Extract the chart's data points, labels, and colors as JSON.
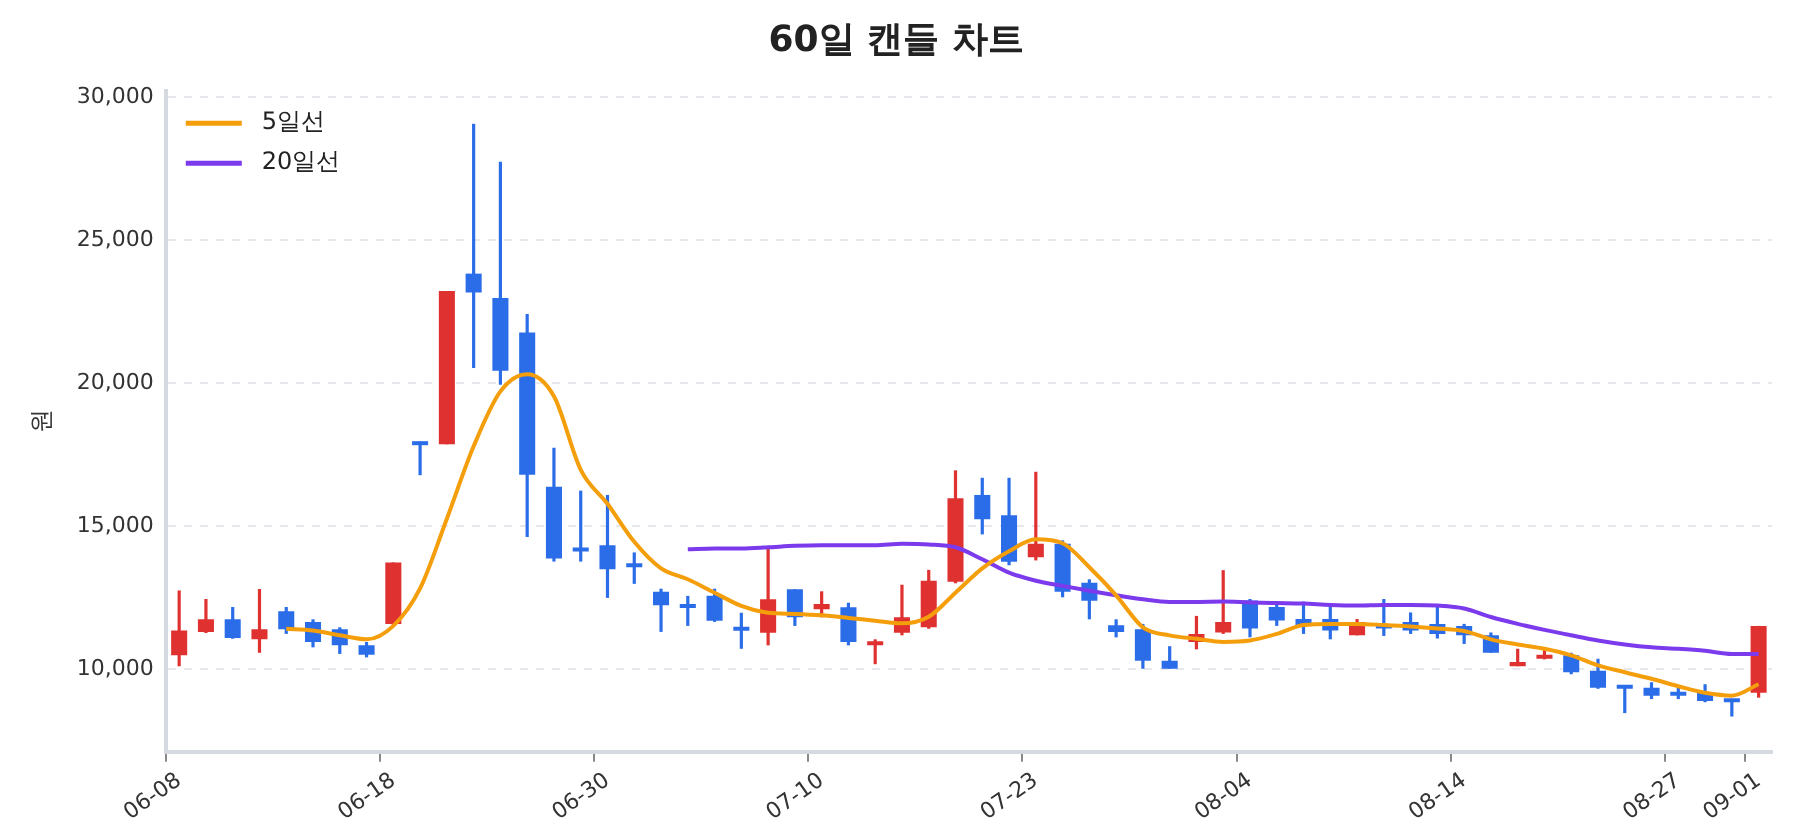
{
  "chart_data": {
    "type": "candlestick",
    "title": "60일 캔들 차트",
    "ylabel": "원",
    "categories": [
      "06-08",
      null,
      null,
      null,
      null,
      null,
      null,
      null,
      "06-18",
      null,
      null,
      null,
      null,
      null,
      null,
      null,
      "06-30",
      null,
      null,
      null,
      null,
      null,
      null,
      null,
      "07-10",
      null,
      null,
      null,
      null,
      null,
      null,
      null,
      "07-23",
      null,
      null,
      null,
      null,
      null,
      null,
      null,
      "08-04",
      null,
      null,
      null,
      null,
      null,
      null,
      null,
      "08-14",
      null,
      null,
      null,
      null,
      null,
      null,
      null,
      "08-27",
      null,
      null,
      "09-01"
    ],
    "ylim": [
      7100,
      30200
    ],
    "yticks": [
      {
        "value": 10000,
        "label": "10,000"
      },
      {
        "value": 15000,
        "label": "15,000"
      },
      {
        "value": 20000,
        "label": "20,000"
      },
      {
        "value": 25000,
        "label": "25,000"
      },
      {
        "value": 30000,
        "label": "30,000"
      }
    ],
    "grid": "y",
    "legend": "top left",
    "marker": "none",
    "series": [
      {
        "type": "candlestick",
        "ohlc": [
          [
            10470,
            12740,
            10090,
            11340
          ],
          [
            11290,
            12440,
            11250,
            11730
          ],
          [
            11730,
            12160,
            11050,
            11080
          ],
          [
            11030,
            12790,
            10560,
            11380
          ],
          [
            12010,
            12160,
            11220,
            11380
          ],
          [
            11640,
            11730,
            10750,
            10940
          ],
          [
            11380,
            11450,
            10520,
            10820
          ],
          [
            10820,
            10940,
            10400,
            10490
          ],
          [
            11570,
            13720,
            11500,
            13720
          ],
          [
            17940,
            17940,
            16770,
            17820
          ],
          [
            17850,
            23210,
            17850,
            23210
          ],
          [
            23820,
            29060,
            20520,
            23160
          ],
          [
            22970,
            27730,
            19930,
            20420
          ],
          [
            21760,
            22410,
            14610,
            16790
          ],
          [
            16370,
            17730,
            13750,
            13860
          ],
          [
            14220,
            16230,
            13750,
            14100
          ],
          [
            14320,
            16080,
            12480,
            13480
          ],
          [
            13670,
            14070,
            12970,
            13550
          ],
          [
            12690,
            12800,
            11290,
            12220
          ],
          [
            12240,
            12550,
            11500,
            12130
          ],
          [
            12550,
            12800,
            11640,
            11680
          ],
          [
            11450,
            11960,
            10700,
            11330
          ],
          [
            11260,
            14210,
            10820,
            12430
          ],
          [
            12780,
            12780,
            11500,
            11800
          ],
          [
            12080,
            12710,
            11800,
            12270
          ],
          [
            12150,
            12310,
            10820,
            10940
          ],
          [
            10820,
            11030,
            10160,
            10910
          ],
          [
            11260,
            12940,
            11170,
            11800
          ],
          [
            11450,
            13460,
            11400,
            13080
          ],
          [
            13040,
            16940,
            12990,
            15960
          ],
          [
            16080,
            16680,
            14700,
            15230
          ],
          [
            15370,
            16680,
            13620,
            13740
          ],
          [
            13900,
            16890,
            13790,
            14370
          ],
          [
            14370,
            14490,
            12500,
            12690
          ],
          [
            13010,
            13130,
            11730,
            12380
          ],
          [
            11520,
            11730,
            11100,
            11290
          ],
          [
            11380,
            11570,
            10000,
            10280
          ],
          [
            10280,
            10790,
            10000,
            10000
          ],
          [
            10940,
            11850,
            10680,
            11220
          ],
          [
            11270,
            13450,
            11220,
            11640
          ],
          [
            12390,
            12440,
            11100,
            11410
          ],
          [
            12160,
            12230,
            11500,
            11690
          ],
          [
            11740,
            12350,
            11220,
            11500
          ],
          [
            11740,
            12160,
            11030,
            11340
          ],
          [
            11170,
            11740,
            11170,
            11640
          ],
          [
            11500,
            12440,
            11150,
            11410
          ],
          [
            11640,
            11970,
            11220,
            11340
          ],
          [
            11570,
            12210,
            11060,
            11220
          ],
          [
            11500,
            11570,
            10870,
            11170
          ],
          [
            11170,
            11270,
            10560,
            10560
          ],
          [
            10090,
            10700,
            10090,
            10240
          ],
          [
            10350,
            10700,
            10330,
            10400
          ],
          [
            10470,
            10560,
            9810,
            9880
          ],
          [
            9930,
            10350,
            9300,
            9340
          ],
          [
            9390,
            9390,
            8450,
            9300
          ],
          [
            9340,
            9530,
            8940,
            9060
          ],
          [
            9200,
            9340,
            8940,
            9060
          ],
          [
            9160,
            9460,
            8830,
            8870
          ],
          [
            8920,
            8920,
            8330,
            8830
          ],
          [
            9160,
            11500,
            8990,
            11500
          ]
        ],
        "colors": [
          "#e03131",
          "#e03131",
          "#2b6de8",
          "#e03131",
          "#2b6de8",
          "#2b6de8",
          "#2b6de8",
          "#2b6de8",
          "#e03131",
          "#2b6de8",
          "#e03131",
          "#2b6de8",
          "#2b6de8",
          "#2b6de8",
          "#2b6de8",
          "#2b6de8",
          "#2b6de8",
          "#2b6de8",
          "#2b6de8",
          "#2b6de8",
          "#2b6de8",
          "#2b6de8",
          "#e03131",
          "#2b6de8",
          "#e03131",
          "#2b6de8",
          "#e03131",
          "#e03131",
          "#e03131",
          "#e03131",
          "#2b6de8",
          "#2b6de8",
          "#e03131",
          "#2b6de8",
          "#2b6de8",
          "#2b6de8",
          "#2b6de8",
          "#2b6de8",
          "#e03131",
          "#e03131",
          "#2b6de8",
          "#2b6de8",
          "#2b6de8",
          "#2b6de8",
          "#e03131",
          "#2b6de8",
          "#2b6de8",
          "#2b6de8",
          "#2b6de8",
          "#2b6de8",
          "#e03131",
          "#e03131",
          "#2b6de8",
          "#2b6de8",
          "#2b6de8",
          "#2b6de8",
          "#2b6de8",
          "#2b6de8",
          "#2b6de8",
          "#e03131"
        ]
      },
      {
        "type": "line",
        "name": "5일선",
        "color": "#f59e0b",
        "values": [
          null,
          null,
          null,
          null,
          11400,
          11340,
          11170,
          11030,
          11500,
          12810,
          15250,
          17780,
          19700,
          20300,
          19530,
          16960,
          15770,
          14440,
          13510,
          13130,
          12660,
          12200,
          11960,
          11920,
          11870,
          11780,
          11680,
          11590,
          11820,
          12660,
          13510,
          14110,
          14530,
          14390,
          13550,
          12570,
          11450,
          11170,
          11050,
          10940,
          10990,
          11220,
          11530,
          11570,
          11570,
          11530,
          11480,
          11410,
          11320,
          11030,
          10850,
          10700,
          10470,
          10120,
          9880,
          9650,
          9390,
          9160,
          9060,
          9460
        ]
      },
      {
        "type": "line",
        "name": "20일선",
        "color": "#7c3aed",
        "values": [
          null,
          null,
          null,
          null,
          null,
          null,
          null,
          null,
          null,
          null,
          null,
          null,
          null,
          null,
          null,
          null,
          null,
          null,
          null,
          14180,
          14210,
          14210,
          14250,
          14300,
          14320,
          14320,
          14320,
          14370,
          14350,
          14250,
          13830,
          13360,
          13080,
          12900,
          12730,
          12570,
          12430,
          12340,
          12340,
          12350,
          12320,
          12300,
          12280,
          12230,
          12210,
          12230,
          12230,
          12210,
          12110,
          11810,
          11570,
          11360,
          11170,
          10990,
          10850,
          10750,
          10700,
          10630,
          10520,
          10520
        ]
      }
    ]
  }
}
